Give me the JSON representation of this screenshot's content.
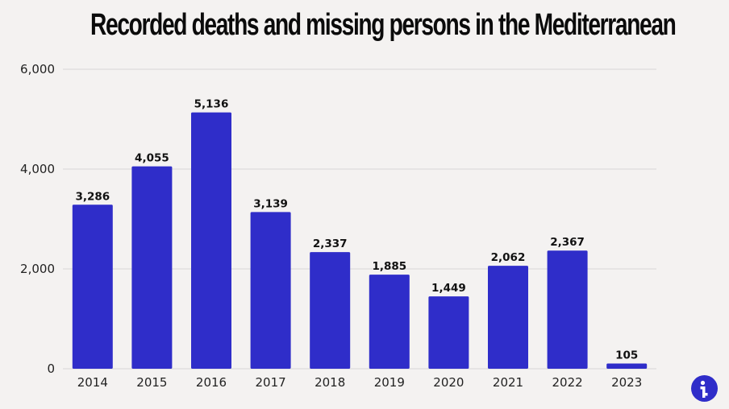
{
  "chart_data": {
    "type": "bar",
    "title": "Recorded deaths and missing persons in the Mediterranean",
    "categories": [
      "2014",
      "2015",
      "2016",
      "2017",
      "2018",
      "2019",
      "2020",
      "2021",
      "2022",
      "2023"
    ],
    "values": [
      3286,
      4055,
      5136,
      3139,
      2337,
      1885,
      1449,
      2062,
      2367,
      105
    ],
    "value_labels": [
      "3,286",
      "4,055",
      "5,136",
      "3,139",
      "2,337",
      "1,885",
      "1,449",
      "2,062",
      "2,367",
      "105"
    ],
    "yticks": [
      0,
      2000,
      4000,
      6000
    ],
    "ytick_labels": [
      "0",
      "2,000",
      "4,000",
      "6,000"
    ],
    "ylim": [
      0,
      6000
    ],
    "xlabel": "",
    "ylabel": "",
    "grid": true,
    "bar_color": "#2f2dc9",
    "grid_color": "#d9d7d6"
  },
  "logo": {
    "icon": "info-brand-icon",
    "color": "#2f2dc9"
  }
}
